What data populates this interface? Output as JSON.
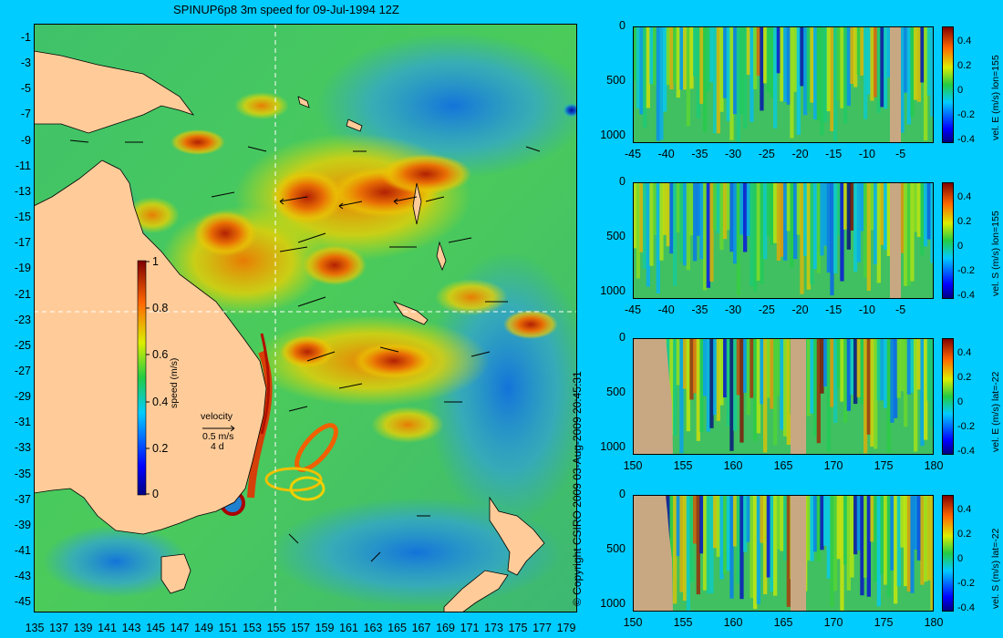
{
  "title": "SPINUP6p8 3m speed for 09-Jul-1994 12Z",
  "copyright": "© Copyright CSIRO 2009   03-Aug-2009 20:45:31",
  "colors": {
    "background": "#00CCFF",
    "land": "#FFCC99",
    "section_land": "#C8A882",
    "crosshair": "#FFFFFF"
  },
  "map": {
    "lon_ticks": [
      "135",
      "137",
      "139",
      "141",
      "143",
      "145",
      "147",
      "149",
      "151",
      "153",
      "155",
      "157",
      "159",
      "161",
      "163",
      "165",
      "167",
      "169",
      "171",
      "173",
      "175",
      "177",
      "179"
    ],
    "lat_ticks": [
      "-1",
      "-3",
      "-5",
      "-7",
      "-9",
      "-11",
      "-13",
      "-15",
      "-17",
      "-19",
      "-21",
      "-23",
      "-25",
      "-27",
      "-29",
      "-31",
      "-33",
      "-35",
      "-37",
      "-39",
      "-41",
      "-43",
      "-45"
    ],
    "colorbar": {
      "label": "speed (m/s)",
      "ticks": [
        "1",
        "0.8",
        "0.6",
        "0.4",
        "0.2",
        "0"
      ],
      "range": [
        0,
        1
      ]
    },
    "velocity_legend": {
      "title": "velocity",
      "value": "0.5 m/s",
      "duration": "4 d"
    },
    "crosshair": {
      "lon": 155,
      "lat": -22
    }
  },
  "sections": [
    {
      "id": "vel-e-lon155",
      "cbar_label": "vel. E (m/s) lon=155",
      "x_ticks": [
        "-45",
        "-40",
        "-35",
        "-30",
        "-25",
        "-20",
        "-15",
        "-10",
        "-5"
      ],
      "y_ticks": [
        "0",
        "500",
        "1000"
      ],
      "cbar_ticks": [
        "0.4",
        "0.2",
        "0",
        "-0.2",
        "-0.4"
      ]
    },
    {
      "id": "vel-s-lon155",
      "cbar_label": "vel. S (m/s) lon=155",
      "x_ticks": [
        "-45",
        "-40",
        "-35",
        "-30",
        "-25",
        "-20",
        "-15",
        "-10",
        "-5"
      ],
      "y_ticks": [
        "0",
        "500",
        "1000"
      ],
      "cbar_ticks": [
        "0.4",
        "0.2",
        "0",
        "-0.2",
        "-0.4"
      ]
    },
    {
      "id": "vel-e-lat-22",
      "cbar_label": "vel. E (m/s) lat=-22",
      "x_ticks": [
        "150",
        "155",
        "160",
        "165",
        "170",
        "175",
        "180"
      ],
      "y_ticks": [
        "0",
        "500",
        "1000"
      ],
      "cbar_ticks": [
        "0.4",
        "0.2",
        "0",
        "-0.2",
        "-0.4"
      ]
    },
    {
      "id": "vel-s-lat-22",
      "cbar_label": "vel. S (m/s) lat=-22",
      "x_ticks": [
        "150",
        "155",
        "160",
        "165",
        "170",
        "175",
        "180"
      ],
      "y_ticks": [
        "0",
        "500",
        "1000"
      ],
      "cbar_ticks": [
        "0.4",
        "0.2",
        "0",
        "-0.2",
        "-0.4"
      ]
    }
  ],
  "chart_data": [
    {
      "type": "heatmap",
      "title": "SPINUP6p8 3m speed for 09-Jul-1994 12Z",
      "xlim": [
        135,
        180
      ],
      "ylim": [
        -45,
        0
      ],
      "x_tick_labels": [
        "135",
        "137",
        "139",
        "141",
        "143",
        "145",
        "147",
        "149",
        "151",
        "153",
        "155",
        "157",
        "159",
        "161",
        "163",
        "165",
        "167",
        "169",
        "171",
        "173",
        "175",
        "177",
        "179"
      ],
      "y_tick_labels": [
        "-1",
        "-3",
        "-5",
        "-7",
        "-9",
        "-11",
        "-13",
        "-15",
        "-17",
        "-19",
        "-21",
        "-23",
        "-25",
        "-27",
        "-29",
        "-31",
        "-33",
        "-35",
        "-37",
        "-39",
        "-41",
        "-43",
        "-45"
      ],
      "colorbar_label": "speed (m/s)",
      "colorbar_range": [
        0,
        1
      ]
    },
    {
      "type": "heatmap",
      "xlim": [
        -45,
        0
      ],
      "ylim": [
        1050,
        0
      ],
      "colorbar_label": "vel. E (m/s) lon=155",
      "colorbar_range": [
        -0.45,
        0.45
      ]
    },
    {
      "type": "heatmap",
      "xlim": [
        -45,
        0
      ],
      "ylim": [
        1050,
        0
      ],
      "colorbar_label": "vel. S (m/s) lon=155",
      "colorbar_range": [
        -0.45,
        0.45
      ]
    },
    {
      "type": "heatmap",
      "xlim": [
        150,
        180
      ],
      "ylim": [
        1050,
        0
      ],
      "colorbar_label": "vel. E (m/s) lat=-22",
      "colorbar_range": [
        -0.45,
        0.45
      ]
    },
    {
      "type": "heatmap",
      "xlim": [
        150,
        180
      ],
      "ylim": [
        1050,
        0
      ],
      "colorbar_label": "vel. S (m/s) lat=-22",
      "colorbar_range": [
        -0.45,
        0.45
      ]
    }
  ]
}
